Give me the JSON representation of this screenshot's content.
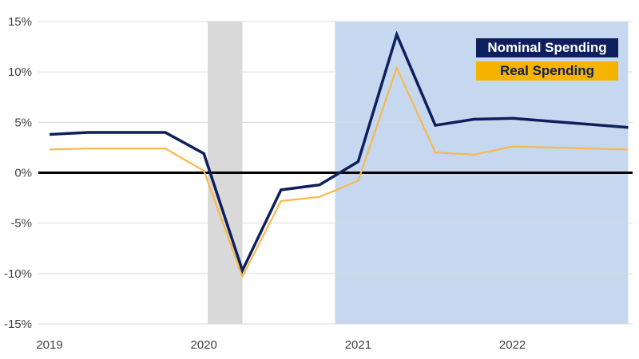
{
  "chart_data": {
    "type": "line",
    "x": [
      "2019 Q1",
      "2019 Q2",
      "2019 Q3",
      "2019 Q4",
      "2020 Q1",
      "2020 Q2",
      "2020 Q3",
      "2020 Q4",
      "2021 Q1",
      "2021 Q2",
      "2021 Q3",
      "2021 Q4",
      "2022 Q1",
      "2022 Q2",
      "2022 Q3",
      "2022 Q4"
    ],
    "series": [
      {
        "name": "Nominal Spending",
        "color": "#0d1f5c",
        "values": [
          3.8,
          4.0,
          4.0,
          4.0,
          1.9,
          -9.7,
          -1.7,
          -1.2,
          1.1,
          13.7,
          4.7,
          5.3,
          5.4,
          5.1,
          4.8,
          4.5
        ]
      },
      {
        "name": "Real Spending",
        "color": "#f8b84a",
        "values": [
          2.3,
          2.4,
          2.4,
          2.4,
          0.2,
          -10.3,
          -2.8,
          -2.4,
          -0.8,
          10.4,
          2.0,
          1.8,
          2.6,
          2.5,
          2.4,
          2.3
        ]
      }
    ],
    "ylim": [
      -15,
      15
    ],
    "yticks": [
      {
        "value": 15,
        "label": "15%"
      },
      {
        "value": 10,
        "label": "10%"
      },
      {
        "value": 5,
        "label": "5%"
      },
      {
        "value": 0,
        "label": "0%"
      },
      {
        "value": -5,
        "label": "-5%"
      },
      {
        "value": -10,
        "label": "-10%"
      },
      {
        "value": -15,
        "label": "-15%"
      }
    ],
    "xticks": [
      {
        "at": "2019 Q1",
        "label": "2019"
      },
      {
        "at": "2020 Q1",
        "label": "2020"
      },
      {
        "at": "2021 Q1",
        "label": "2021"
      },
      {
        "at": "2022 Q1",
        "label": "2022"
      }
    ],
    "shaded_regions": [
      {
        "from": 4.1,
        "to": 5.0,
        "color": "#d9d9d9"
      },
      {
        "from": 7.4,
        "to": 15.0,
        "color": "#c5d8ef"
      }
    ],
    "grid": true,
    "legend_position": "top-right"
  }
}
